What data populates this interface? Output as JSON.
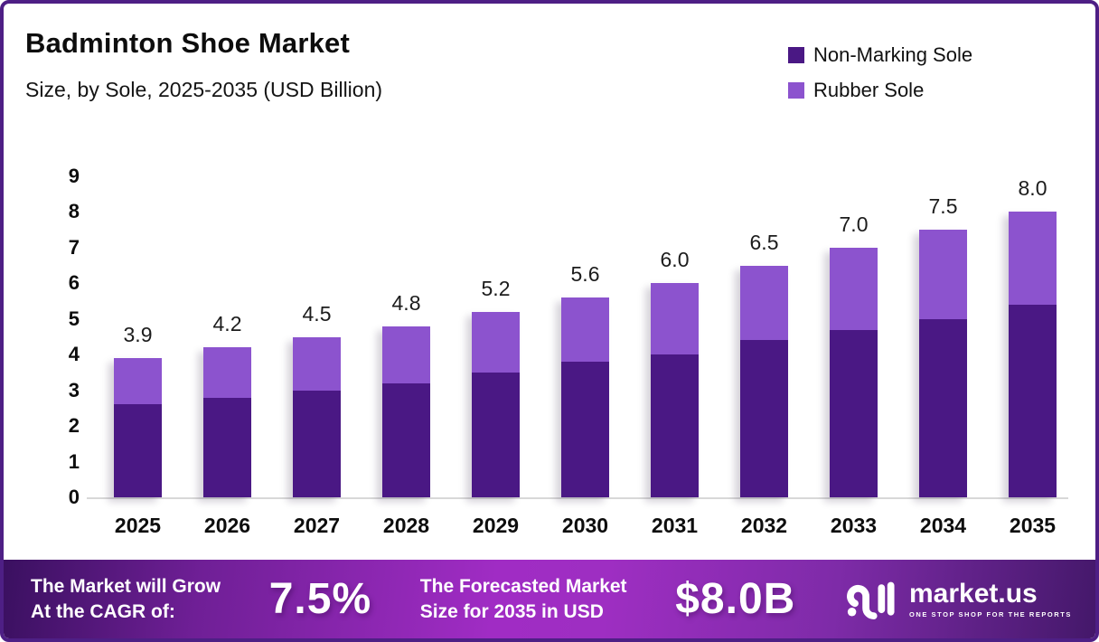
{
  "header": {
    "title": "Badminton Shoe Market",
    "subtitle": "Size, by Sole, 2025-2035 (USD Billion)"
  },
  "legend": {
    "items": [
      {
        "label": "Non-Marking Sole",
        "color": "#4A1884"
      },
      {
        "label": "Rubber Sole",
        "color": "#8C53CE"
      }
    ]
  },
  "chart_data": {
    "type": "bar",
    "stacked": true,
    "title": "Badminton Shoe Market Size, by Sole, 2025-2035",
    "unit": "USD Billion",
    "categories": [
      "2025",
      "2026",
      "2027",
      "2028",
      "2029",
      "2030",
      "2031",
      "2032",
      "2033",
      "2034",
      "2035"
    ],
    "series": [
      {
        "name": "Non-Marking Sole",
        "color": "#4A1884",
        "values": [
          2.6,
          2.8,
          3.0,
          3.2,
          3.5,
          3.8,
          4.0,
          4.4,
          4.7,
          5.0,
          5.4
        ]
      },
      {
        "name": "Rubber Sole",
        "color": "#8C53CE",
        "values": [
          1.3,
          1.4,
          1.5,
          1.6,
          1.7,
          1.8,
          2.0,
          2.1,
          2.3,
          2.5,
          2.6
        ]
      }
    ],
    "total_labels": [
      "3.9",
      "4.2",
      "4.5",
      "4.8",
      "5.2",
      "5.6",
      "6.0",
      "6.5",
      "7.0",
      "7.5",
      "8.0"
    ],
    "ylim": [
      0,
      9
    ],
    "yticks": [
      "0",
      "1",
      "2",
      "3",
      "4",
      "5",
      "6",
      "7",
      "8",
      "9"
    ],
    "legend_position": "top-right",
    "grid": false
  },
  "banner": {
    "cagr_label_line1": "The Market will Grow",
    "cagr_label_line2": "At the CAGR of:",
    "cagr_value": "7.5%",
    "forecast_label_line1": "The Forecasted Market",
    "forecast_label_line2": "Size for 2035 in USD",
    "forecast_value": "$8.0B",
    "brand_name": "market.us",
    "brand_tagline": "ONE STOP SHOP FOR THE REPORTS"
  },
  "colors": {
    "frame_border": "#4E1F85",
    "banner_center": "#A02CC4",
    "banner_edge": "#3A1060",
    "axis_line": "#D8D8D8",
    "text": "#0D0D0D"
  }
}
